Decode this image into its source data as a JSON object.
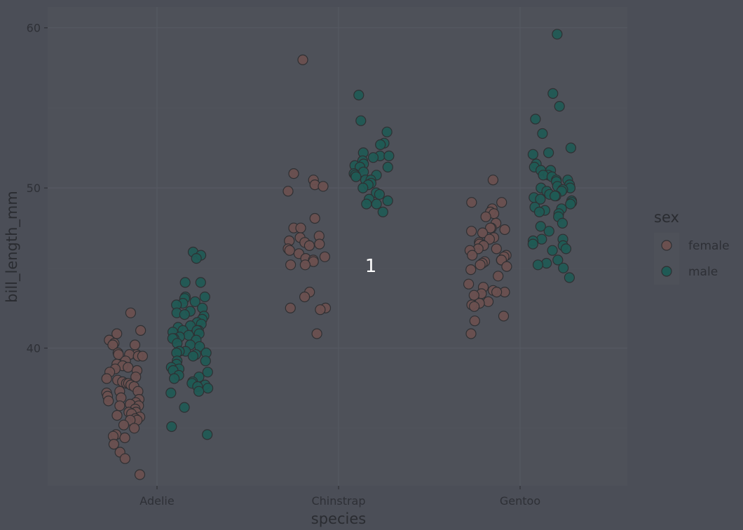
{
  "chart_data": {
    "type": "scatter",
    "title": "",
    "xlabel": "species",
    "ylabel": "bill_length_mm",
    "categories": [
      "Adelie",
      "Chinstrap",
      "Gentoo"
    ],
    "y_ticks": [
      40,
      50,
      60
    ],
    "ylim": [
      31.4,
      61.3
    ],
    "grid": true,
    "legend": {
      "title": "sex",
      "position": "right",
      "entries": [
        "female",
        "male"
      ]
    },
    "annotation": "1",
    "colors": {
      "female": "#6b504f",
      "male": "#1f5a55",
      "panel": "#4e5159",
      "background": "#4b4e57",
      "point_stroke": "#2f3033"
    },
    "series": [
      {
        "name": "female",
        "points": [
          {
            "category": "Adelie",
            "values": [
              42.2,
              41.1,
              40.9,
              40.5,
              40.3,
              40.2,
              40.2,
              39.7,
              39.6,
              39.6,
              39.6,
              39.5,
              39.5,
              39.2,
              39.0,
              38.9,
              38.9,
              38.8,
              38.7,
              38.6,
              38.5,
              38.2,
              38.1,
              38.0,
              37.9,
              37.8,
              37.8,
              37.7,
              37.6,
              37.3,
              37.3,
              37.2,
              37.0,
              36.9,
              36.8,
              36.7,
              36.6,
              36.5,
              36.4,
              36.4,
              36.2,
              36.0,
              36.0,
              35.9,
              35.8,
              35.7,
              35.6,
              35.5,
              35.5,
              35.2,
              35.0,
              34.6,
              34.5,
              34.4,
              34.0,
              33.5,
              33.1,
              32.1
            ]
          },
          {
            "category": "Chinstrap",
            "values": [
              58.0,
              50.9,
              50.5,
              50.2,
              50.1,
              49.8,
              48.1,
              47.5,
              47.5,
              47.0,
              46.9,
              46.7,
              46.6,
              46.5,
              46.4,
              46.2,
              46.1,
              45.9,
              45.7,
              45.6,
              45.5,
              45.4,
              45.2,
              45.2,
              43.5,
              43.2,
              42.5,
              42.5,
              42.4,
              40.9
            ]
          },
          {
            "category": "Gentoo",
            "values": [
              50.5,
              49.1,
              49.1,
              48.7,
              48.5,
              48.4,
              48.2,
              47.8,
              47.5,
              47.5,
              47.4,
              47.3,
              47.2,
              46.9,
              46.8,
              46.6,
              46.5,
              46.4,
              46.2,
              46.2,
              46.1,
              45.8,
              45.8,
              45.7,
              45.5,
              45.5,
              45.4,
              45.3,
              45.2,
              45.1,
              44.9,
              44.5,
              44.0,
              43.8,
              43.6,
              43.5,
              43.5,
              43.4,
              43.3,
              42.9,
              42.8,
              42.7,
              42.6,
              42.0,
              41.7,
              40.9
            ]
          }
        ]
      },
      {
        "name": "male",
        "points": [
          {
            "category": "Adelie",
            "values": [
              46.0,
              45.8,
              45.6,
              44.1,
              44.1,
              43.2,
              43.2,
              43.1,
              42.9,
              42.8,
              42.7,
              42.5,
              42.3,
              42.2,
              42.1,
              42.0,
              41.8,
              41.6,
              41.5,
              41.4,
              41.3,
              41.1,
              41.1,
              41.1,
              41.0,
              40.9,
              40.8,
              40.7,
              40.6,
              40.6,
              40.5,
              40.3,
              40.2,
              40.1,
              39.8,
              39.8,
              39.7,
              39.7,
              39.6,
              39.5,
              39.2,
              39.2,
              39.0,
              38.8,
              38.7,
              38.6,
              38.5,
              38.3,
              38.2,
              38.1,
              37.9,
              37.8,
              37.7,
              37.6,
              37.5,
              37.3,
              37.2,
              36.3,
              35.1,
              34.6
            ]
          },
          {
            "category": "Chinstrap",
            "values": [
              55.8,
              54.2,
              53.5,
              52.8,
              52.7,
              52.2,
              52.0,
              52.0,
              51.9,
              51.7,
              51.5,
              51.4,
              51.3,
              51.3,
              51.0,
              50.9,
              50.8,
              50.8,
              50.7,
              50.5,
              50.5,
              50.3,
              50.2,
              50.0,
              49.7,
              49.6,
              49.3,
              49.2,
              49.0,
              49.0,
              48.5
            ]
          },
          {
            "category": "Gentoo",
            "values": [
              59.6,
              55.9,
              55.1,
              54.3,
              53.4,
              52.5,
              52.2,
              52.1,
              51.5,
              51.3,
              51.1,
              51.1,
              50.8,
              50.8,
              50.7,
              50.5,
              50.5,
              50.4,
              50.2,
              50.1,
              50.0,
              50.0,
              49.9,
              49.8,
              49.8,
              49.6,
              49.5,
              49.5,
              49.4,
              49.3,
              49.2,
              49.1,
              49.0,
              48.8,
              48.7,
              48.6,
              48.5,
              48.4,
              48.2,
              47.8,
              47.6,
              47.3,
              46.8,
              46.8,
              46.7,
              46.5,
              46.4,
              46.2,
              46.1,
              45.5,
              45.3,
              45.2,
              45.0,
              44.4
            ]
          }
        ]
      }
    ]
  }
}
